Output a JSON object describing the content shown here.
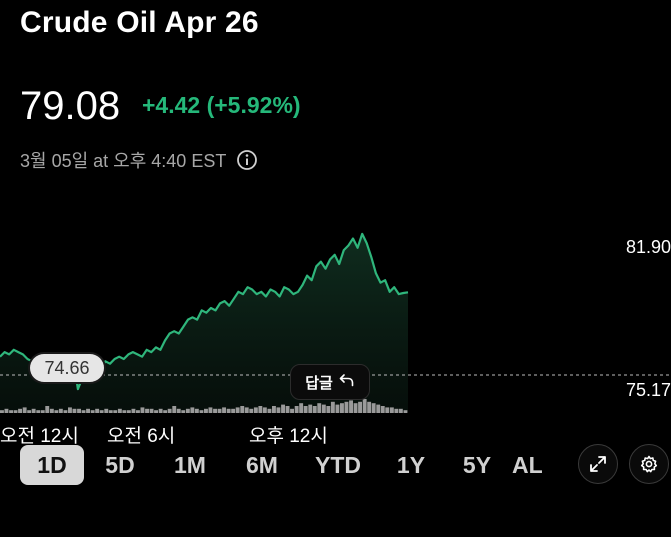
{
  "header": {
    "title": "Crude Oil Apr 26",
    "price": "79.08",
    "change": "+4.42 (+5.92%)",
    "timestamp": "3월 05일 at 오후 4:40 EST"
  },
  "colors": {
    "positive": "#25b87a",
    "line": "#2fb67c",
    "background": "#000000"
  },
  "chart_data": {
    "type": "line",
    "y_axis_labels": [
      "81.90",
      "75.17"
    ],
    "previous_close": "74.66",
    "x_tick_labels": [
      "오전 12시",
      "오전 6시",
      "오후 12시"
    ],
    "ylim": [
      74.0,
      82.2
    ],
    "series": [
      {
        "values": [
          76.3,
          76.5,
          76.4,
          76.6,
          76.5,
          76.4,
          76.2,
          76.1,
          76.3,
          76.2,
          76.0,
          75.9,
          76.1,
          76.2,
          76.1,
          76.3,
          76.2,
          74.9,
          75.4,
          75.6,
          75.8,
          75.9,
          75.8,
          76.1,
          76.0,
          76.2,
          76.3,
          76.2,
          76.4,
          76.5,
          76.4,
          76.3,
          76.6,
          76.5,
          76.7,
          76.6,
          77.0,
          77.3,
          77.4,
          77.3,
          77.6,
          77.9,
          78.0,
          77.9,
          78.3,
          78.2,
          78.4,
          78.3,
          78.6,
          78.7,
          78.5,
          78.8,
          79.1,
          79.0,
          79.3,
          79.2,
          79.0,
          79.1,
          78.9,
          79.2,
          79.1,
          78.9,
          79.3,
          79.2,
          79.0,
          79.1,
          79.4,
          79.8,
          79.6,
          80.2,
          80.4,
          80.1,
          80.5,
          80.7,
          80.3,
          80.9,
          81.1,
          81.4,
          81.0,
          81.6,
          81.2,
          80.6,
          79.9,
          79.5,
          79.6,
          79.1,
          79.3,
          79.0,
          79.05,
          79.08
        ]
      }
    ],
    "volume": [
      2,
      3,
      2,
      2,
      3,
      4,
      2,
      3,
      2,
      2,
      5,
      3,
      2,
      3,
      2,
      4,
      3,
      3,
      2,
      3,
      2,
      3,
      2,
      3,
      2,
      2,
      3,
      2,
      2,
      3,
      2,
      4,
      3,
      3,
      2,
      3,
      2,
      3,
      5,
      3,
      2,
      3,
      4,
      3,
      2,
      3,
      4,
      3,
      3,
      4,
      3,
      3,
      4,
      5,
      4,
      3,
      4,
      5,
      4,
      3,
      5,
      4,
      6,
      5,
      3,
      5,
      7,
      5,
      6,
      5,
      7,
      6,
      5,
      8,
      6,
      7,
      8,
      9,
      7,
      8,
      10,
      8,
      7,
      6,
      5,
      4,
      4,
      3,
      3,
      2
    ]
  },
  "previous_close_badge": "74.66",
  "reply_button": {
    "label": "답글",
    "icon": "reply-arrow-icon"
  },
  "range_tabs": [
    {
      "label": "1D",
      "active": true
    },
    {
      "label": "5D",
      "active": false
    },
    {
      "label": "1M",
      "active": false
    },
    {
      "label": "6M",
      "active": false
    },
    {
      "label": "YTD",
      "active": false
    },
    {
      "label": "1Y",
      "active": false
    },
    {
      "label": "5Y",
      "active": false
    },
    {
      "label": "AL",
      "active": false
    }
  ],
  "buttons": {
    "expand_icon": "expand-arrows-icon",
    "settings_icon": "gear-icon"
  }
}
